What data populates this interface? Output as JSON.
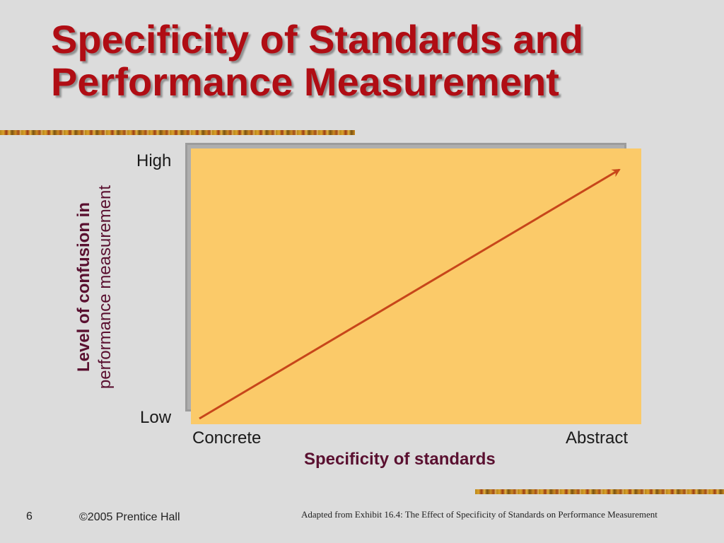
{
  "slide": {
    "title_line1": "Specificity of Standards and",
    "title_line2": "Performance Measurement",
    "page_number": "6",
    "copyright": "©2005 Prentice Hall",
    "source_note": "Adapted from Exhibit 16.4: The Effect of Specificity of Standards on Performance Measurement"
  },
  "diagram": {
    "y_axis_label_line1": "Level of confusion in",
    "y_axis_label_line2": "performance measurement",
    "y_high": "High",
    "y_low": "Low",
    "x_axis_label": "Specificity of standards",
    "x_left": "Concrete",
    "x_right": "Abstract",
    "relationship": "positive (confusion increases as standards become more abstract)",
    "colors": {
      "plot_background": "#fbca69",
      "arrow": "#c7461a",
      "title": "#b00d14",
      "axis_label": "#5a1030"
    }
  }
}
